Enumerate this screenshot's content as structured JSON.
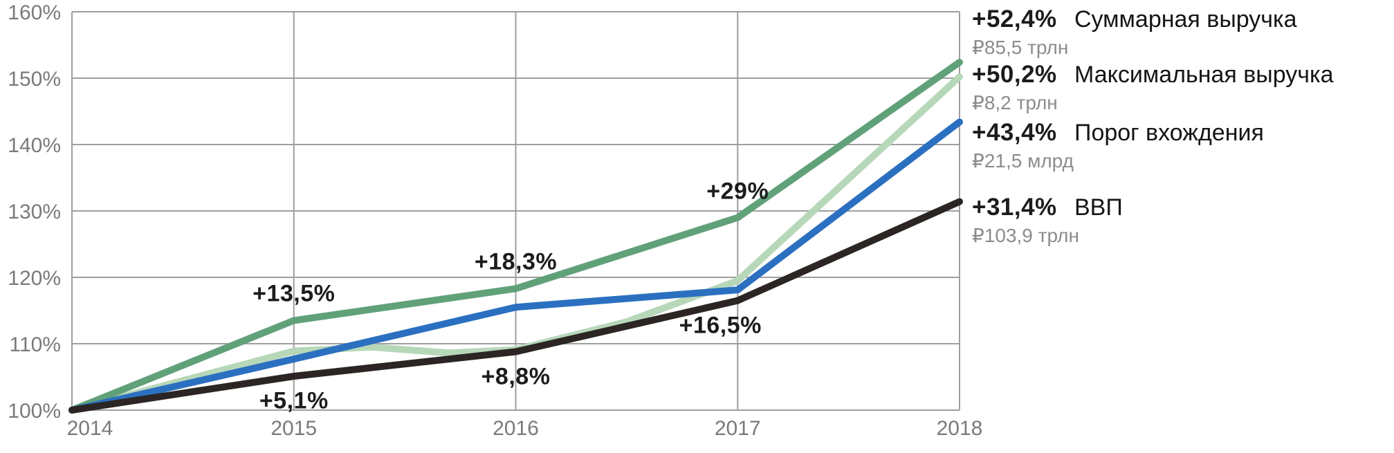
{
  "chart_data": {
    "type": "line",
    "title": "",
    "xlabel": "",
    "ylabel": "",
    "xlim": [
      2014,
      2018
    ],
    "ylim": [
      100,
      160
    ],
    "grid": true,
    "legend_position": "right",
    "x_ticks": [
      {
        "label": "2014",
        "value": 2014
      },
      {
        "label": "2015",
        "value": 2015
      },
      {
        "label": "2016",
        "value": 2016
      },
      {
        "label": "2017",
        "value": 2017
      },
      {
        "label": "2018",
        "value": 2018
      }
    ],
    "y_ticks": [
      {
        "label": "160%",
        "value": 160
      },
      {
        "label": "150%",
        "value": 150
      },
      {
        "label": "140%",
        "value": 140
      },
      {
        "label": "130%",
        "value": 130
      },
      {
        "label": "120%",
        "value": 120
      },
      {
        "label": "110%",
        "value": 110
      },
      {
        "label": "100%",
        "value": 100
      }
    ],
    "series": [
      {
        "name": "Максимальная выручка",
        "color": "#b7d7b9",
        "points": [
          [
            2014,
            100
          ],
          [
            2015,
            108.9
          ],
          [
            2015.35,
            109.5
          ],
          [
            2015.7,
            108.6
          ],
          [
            2016,
            109.1
          ],
          [
            2016.5,
            113.3
          ],
          [
            2017,
            119.5
          ],
          [
            2018,
            150.2
          ]
        ]
      },
      {
        "name": "Суммарная выручка",
        "color": "#61a17a",
        "points": [
          [
            2014,
            100
          ],
          [
            2015,
            113.5
          ],
          [
            2016,
            118.3
          ],
          [
            2017,
            129.0
          ],
          [
            2018,
            152.4
          ]
        ]
      },
      {
        "name": "Порог вхождения",
        "color": "#2b70c0",
        "points": [
          [
            2014,
            100
          ],
          [
            2015,
            107.7
          ],
          [
            2016,
            115.5
          ],
          [
            2017,
            118.1
          ],
          [
            2018,
            143.4
          ]
        ]
      },
      {
        "name": "ВВП",
        "color": "#2b2623",
        "points": [
          [
            2014,
            100
          ],
          [
            2015,
            105.1
          ],
          [
            2016,
            108.8
          ],
          [
            2017,
            116.5
          ],
          [
            2018,
            131.4
          ]
        ]
      }
    ],
    "annotations": [
      {
        "label": "+13,5%",
        "series": "Суммарная выручка",
        "year": 2015,
        "value": 113.5,
        "placement": "above",
        "dx": 0
      },
      {
        "label": "+18,3%",
        "series": "Суммарная выручка",
        "year": 2016,
        "value": 118.3,
        "placement": "above",
        "dx": 0
      },
      {
        "label": "+29%",
        "series": "Суммарная выручка",
        "year": 2017,
        "value": 129.0,
        "placement": "above",
        "dx": 0
      },
      {
        "label": "+5,1%",
        "series": "ВВП",
        "year": 2015,
        "value": 105.1,
        "placement": "below",
        "dx": 0
      },
      {
        "label": "+8,8%",
        "series": "ВВП",
        "year": 2016,
        "value": 108.8,
        "placement": "below",
        "dx": 0
      },
      {
        "label": "+16,5%",
        "series": "ВВП",
        "year": 2017,
        "value": 116.5,
        "placement": "below",
        "dx": -25
      }
    ],
    "grid_color": "#9e9e9e",
    "tick_color": "#7a7a7a"
  },
  "legend": {
    "items": [
      {
        "change": "+52,4%",
        "name": "Суммарная выручка",
        "value": "₽85,5 трлн"
      },
      {
        "change": "+50,2%",
        "name": "Максимальная выручка",
        "value": "₽8,2 трлн"
      },
      {
        "change": "+43,4%",
        "name": "Порог вхождения",
        "value": "₽21,5 млрд"
      },
      {
        "change": "+31,4%",
        "name": "ВВП",
        "value": "₽103,9 трлн"
      }
    ]
  }
}
